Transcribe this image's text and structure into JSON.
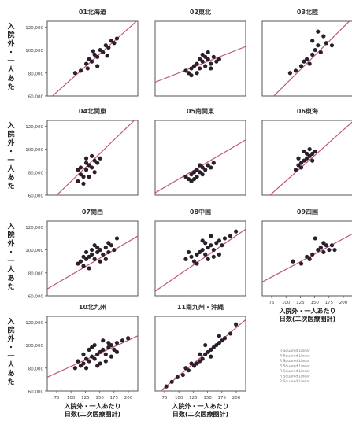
{
  "figure": {
    "ylabel": "入院外・一人あた",
    "xlabel_line1": "入院外・一人あたり",
    "xlabel_line2": "日数(二次医療圏計)",
    "legend_lines": [
      "R Squared Linear",
      "R Squared Linear",
      "R Squared Linear",
      "R Squared Linear",
      "R Squared Linear",
      "R Squared Linear",
      "R Squared Linear"
    ],
    "point_color": "#2a1f2b",
    "line_color": "#c1557b"
  },
  "chart_data": [
    {
      "type": "scatter",
      "title": "01北海道",
      "xlim": [
        1.5,
        2.15
      ],
      "ylim": [
        60000,
        125000
      ],
      "yticks": [
        "120,000",
        "100,000",
        "80,000",
        "60,000"
      ],
      "xticks": [],
      "fit_line": [
        [
          1.5,
          56000
        ],
        [
          2.15,
          126000
        ]
      ],
      "points": [
        [
          1.74,
          82000
        ],
        [
          1.78,
          88000
        ],
        [
          1.8,
          92000
        ],
        [
          1.82,
          90000
        ],
        [
          1.84,
          96000
        ],
        [
          1.86,
          94000
        ],
        [
          1.88,
          100000
        ],
        [
          1.9,
          98000
        ],
        [
          1.92,
          104000
        ],
        [
          1.94,
          102000
        ],
        [
          1.96,
          108000
        ],
        [
          1.98,
          106000
        ],
        [
          1.86,
          86000
        ],
        [
          1.79,
          84000
        ],
        [
          1.93,
          95000
        ],
        [
          2.0,
          110000
        ],
        [
          1.7,
          80000
        ],
        [
          1.83,
          99000
        ]
      ]
    },
    {
      "type": "scatter",
      "title": "02東北",
      "xlim": [
        1.5,
        2.15
      ],
      "ylim": [
        60000,
        125000
      ],
      "yticks": [],
      "xticks": [],
      "fit_line": [
        [
          1.5,
          72000
        ],
        [
          2.15,
          103000
        ]
      ],
      "points": [
        [
          1.72,
          82000
        ],
        [
          1.74,
          80000
        ],
        [
          1.76,
          84000
        ],
        [
          1.78,
          86000
        ],
        [
          1.8,
          88000
        ],
        [
          1.82,
          84000
        ],
        [
          1.84,
          90000
        ],
        [
          1.86,
          86000
        ],
        [
          1.88,
          92000
        ],
        [
          1.9,
          88000
        ],
        [
          1.92,
          94000
        ],
        [
          1.94,
          90000
        ],
        [
          1.88,
          98000
        ],
        [
          1.84,
          96000
        ],
        [
          1.8,
          80000
        ],
        [
          1.76,
          78000
        ],
        [
          1.96,
          92000
        ],
        [
          1.86,
          94000
        ],
        [
          1.9,
          84000
        ],
        [
          1.82,
          92000
        ]
      ]
    },
    {
      "type": "scatter",
      "title": "03北陸",
      "xlim": [
        1.5,
        2.15
      ],
      "ylim": [
        60000,
        125000
      ],
      "yticks": [],
      "xticks": [],
      "fit_line": [
        [
          1.5,
          50000
        ],
        [
          2.15,
          128000
        ]
      ],
      "points": [
        [
          1.7,
          80000
        ],
        [
          1.74,
          82000
        ],
        [
          1.78,
          86000
        ],
        [
          1.82,
          92000
        ],
        [
          1.86,
          96000
        ],
        [
          1.88,
          100000
        ],
        [
          1.9,
          104000
        ],
        [
          1.92,
          98000
        ],
        [
          1.86,
          108000
        ],
        [
          1.94,
          112000
        ],
        [
          1.96,
          106000
        ],
        [
          1.9,
          116000
        ],
        [
          1.84,
          88000
        ],
        [
          2.0,
          104000
        ],
        [
          1.8,
          90000
        ]
      ]
    },
    {
      "type": "scatter",
      "title": "04北関東",
      "xlim": [
        1.5,
        2.15
      ],
      "ylim": [
        60000,
        125000
      ],
      "yticks": [
        "120,000",
        "100,000",
        "80,000",
        "60,000"
      ],
      "xticks": [],
      "fit_line": [
        [
          1.5,
          52000
        ],
        [
          2.15,
          128000
        ]
      ],
      "points": [
        [
          1.72,
          72000
        ],
        [
          1.74,
          78000
        ],
        [
          1.76,
          76000
        ],
        [
          1.78,
          82000
        ],
        [
          1.8,
          86000
        ],
        [
          1.82,
          84000
        ],
        [
          1.84,
          90000
        ],
        [
          1.86,
          88000
        ],
        [
          1.74,
          84000
        ],
        [
          1.78,
          92000
        ],
        [
          1.82,
          94000
        ],
        [
          1.8,
          76000
        ],
        [
          1.76,
          70000
        ],
        [
          1.88,
          92000
        ],
        [
          1.84,
          80000
        ],
        [
          1.72,
          82000
        ],
        [
          1.78,
          88000
        ]
      ]
    },
    {
      "type": "scatter",
      "title": "05南関東",
      "xlim": [
        1.5,
        2.15
      ],
      "ylim": [
        60000,
        125000
      ],
      "yticks": [],
      "xticks": [],
      "fit_line": [
        [
          1.5,
          62000
        ],
        [
          2.15,
          108000
        ]
      ],
      "points": [
        [
          1.72,
          76000
        ],
        [
          1.74,
          74000
        ],
        [
          1.76,
          78000
        ],
        [
          1.78,
          80000
        ],
        [
          1.8,
          82000
        ],
        [
          1.82,
          80000
        ],
        [
          1.84,
          84000
        ],
        [
          1.86,
          82000
        ],
        [
          1.88,
          86000
        ],
        [
          1.9,
          84000
        ],
        [
          1.76,
          72000
        ],
        [
          1.8,
          76000
        ],
        [
          1.84,
          78000
        ],
        [
          1.92,
          88000
        ],
        [
          1.82,
          86000
        ],
        [
          1.78,
          74000
        ]
      ]
    },
    {
      "type": "scatter",
      "title": "06東海",
      "xlim": [
        1.5,
        2.15
      ],
      "ylim": [
        60000,
        125000
      ],
      "yticks": [],
      "xticks": [],
      "fit_line": [
        [
          1.5,
          54000
        ],
        [
          2.15,
          124000
        ]
      ],
      "points": [
        [
          1.74,
          82000
        ],
        [
          1.76,
          86000
        ],
        [
          1.78,
          88000
        ],
        [
          1.8,
          90000
        ],
        [
          1.82,
          92000
        ],
        [
          1.84,
          94000
        ],
        [
          1.86,
          96000
        ],
        [
          1.8,
          98000
        ],
        [
          1.84,
          100000
        ],
        [
          1.78,
          84000
        ],
        [
          1.76,
          92000
        ],
        [
          1.82,
          96000
        ],
        [
          1.88,
          98000
        ],
        [
          1.86,
          90000
        ]
      ]
    },
    {
      "type": "scatter",
      "title": "07関西",
      "xlim": [
        1.5,
        2.15
      ],
      "ylim": [
        60000,
        125000
      ],
      "yticks": [
        "120,000",
        "100,000",
        "80,000",
        "60,000"
      ],
      "xticks": [],
      "fit_line": [
        [
          1.5,
          66000
        ],
        [
          2.15,
          112000
        ]
      ],
      "points": [
        [
          1.72,
          88000
        ],
        [
          1.74,
          90000
        ],
        [
          1.76,
          86000
        ],
        [
          1.78,
          92000
        ],
        [
          1.8,
          94000
        ],
        [
          1.82,
          96000
        ],
        [
          1.84,
          92000
        ],
        [
          1.86,
          98000
        ],
        [
          1.88,
          100000
        ],
        [
          1.9,
          96000
        ],
        [
          1.92,
          102000
        ],
        [
          1.94,
          98000
        ],
        [
          1.96,
          104000
        ],
        [
          1.98,
          100000
        ],
        [
          2.0,
          110000
        ],
        [
          1.84,
          104000
        ],
        [
          1.8,
          84000
        ],
        [
          1.88,
          90000
        ],
        [
          1.76,
          94000
        ],
        [
          1.92,
          92000
        ],
        [
          1.86,
          102000
        ],
        [
          1.78,
          98000
        ],
        [
          1.94,
          106000
        ],
        [
          1.82,
          100000
        ]
      ]
    },
    {
      "type": "scatter",
      "title": "08中国",
      "xlim": [
        1.5,
        2.15
      ],
      "ylim": [
        60000,
        125000
      ],
      "yticks": [],
      "xticks": [],
      "fit_line": [
        [
          1.5,
          64000
        ],
        [
          2.15,
          118000
        ]
      ],
      "points": [
        [
          1.72,
          92000
        ],
        [
          1.76,
          94000
        ],
        [
          1.78,
          90000
        ],
        [
          1.8,
          96000
        ],
        [
          1.82,
          98000
        ],
        [
          1.84,
          100000
        ],
        [
          1.86,
          96000
        ],
        [
          1.88,
          102000
        ],
        [
          1.9,
          104000
        ],
        [
          1.92,
          100000
        ],
        [
          1.94,
          106000
        ],
        [
          1.96,
          108000
        ],
        [
          1.98,
          104000
        ],
        [
          2.0,
          110000
        ],
        [
          2.04,
          112000
        ],
        [
          1.84,
          108000
        ],
        [
          1.9,
          112000
        ],
        [
          1.8,
          88000
        ],
        [
          1.96,
          96000
        ],
        [
          1.86,
          106000
        ],
        [
          1.74,
          98000
        ],
        [
          2.08,
          116000
        ],
        [
          1.92,
          94000
        ],
        [
          1.88,
          92000
        ]
      ]
    },
    {
      "type": "scatter",
      "title": "09四国",
      "xlim": [
        1.5,
        2.15
      ],
      "ylim": [
        60000,
        125000
      ],
      "yticks": [],
      "xticks": [
        "75",
        "100",
        "125",
        "150",
        "175",
        "200"
      ],
      "fit_line": [
        [
          1.5,
          72000
        ],
        [
          2.15,
          114000
        ]
      ],
      "points": [
        [
          1.72,
          90000
        ],
        [
          1.78,
          88000
        ],
        [
          1.82,
          94000
        ],
        [
          1.86,
          96000
        ],
        [
          1.9,
          100000
        ],
        [
          1.92,
          102000
        ],
        [
          1.94,
          98000
        ],
        [
          1.96,
          104000
        ],
        [
          1.98,
          100000
        ],
        [
          2.0,
          104000
        ],
        [
          1.88,
          110000
        ],
        [
          1.84,
          92000
        ],
        [
          1.94,
          106000
        ],
        [
          2.02,
          100000
        ]
      ]
    },
    {
      "type": "scatter",
      "title": "10北九州",
      "xlim": [
        1.5,
        2.15
      ],
      "ylim": [
        60000,
        125000
      ],
      "yticks": [
        "120,000",
        "100,000",
        "80,000",
        "60,000"
      ],
      "xticks": [
        "75",
        "100",
        "125",
        "150",
        "175",
        "200"
      ],
      "fit_line": [
        [
          1.5,
          72000
        ],
        [
          2.15,
          108000
        ]
      ],
      "points": [
        [
          1.7,
          80000
        ],
        [
          1.74,
          82000
        ],
        [
          1.76,
          84000
        ],
        [
          1.78,
          88000
        ],
        [
          1.8,
          86000
        ],
        [
          1.82,
          90000
        ],
        [
          1.84,
          88000
        ],
        [
          1.86,
          92000
        ],
        [
          1.88,
          94000
        ],
        [
          1.9,
          96000
        ],
        [
          1.92,
          92000
        ],
        [
          1.94,
          98000
        ],
        [
          1.96,
          100000
        ],
        [
          1.98,
          96000
        ],
        [
          2.0,
          102000
        ],
        [
          2.04,
          104000
        ],
        [
          1.84,
          100000
        ],
        [
          1.8,
          96000
        ],
        [
          1.88,
          84000
        ],
        [
          1.92,
          86000
        ],
        [
          1.76,
          92000
        ],
        [
          1.96,
          90000
        ],
        [
          2.08,
          106000
        ],
        [
          1.86,
          82000
        ],
        [
          1.82,
          98000
        ],
        [
          1.9,
          104000
        ],
        [
          1.78,
          80000
        ],
        [
          1.94,
          102000
        ],
        [
          2.0,
          94000
        ],
        [
          1.72,
          86000
        ]
      ]
    },
    {
      "type": "scatter",
      "title": "11南九州・沖縄",
      "xlim": [
        1.5,
        2.15
      ],
      "ylim": [
        60000,
        125000
      ],
      "yticks": [],
      "xticks": [
        "75",
        "100",
        "125",
        "150",
        "175",
        "200"
      ],
      "fit_line": [
        [
          1.5,
          56000
        ],
        [
          2.15,
          122000
        ]
      ],
      "points": [
        [
          1.58,
          64000
        ],
        [
          1.62,
          68000
        ],
        [
          1.66,
          72000
        ],
        [
          1.7,
          74000
        ],
        [
          1.74,
          78000
        ],
        [
          1.78,
          82000
        ],
        [
          1.8,
          84000
        ],
        [
          1.82,
          86000
        ],
        [
          1.84,
          88000
        ],
        [
          1.86,
          92000
        ],
        [
          1.88,
          94000
        ],
        [
          1.9,
          96000
        ],
        [
          1.92,
          98000
        ],
        [
          1.94,
          100000
        ],
        [
          1.96,
          102000
        ],
        [
          1.98,
          104000
        ],
        [
          2.0,
          106000
        ],
        [
          2.04,
          110000
        ],
        [
          2.08,
          118000
        ],
        [
          1.86,
          100000
        ],
        [
          1.76,
          84000
        ],
        [
          1.9,
          90000
        ],
        [
          1.96,
          108000
        ],
        [
          1.72,
          80000
        ],
        [
          1.82,
          92000
        ]
      ]
    }
  ]
}
